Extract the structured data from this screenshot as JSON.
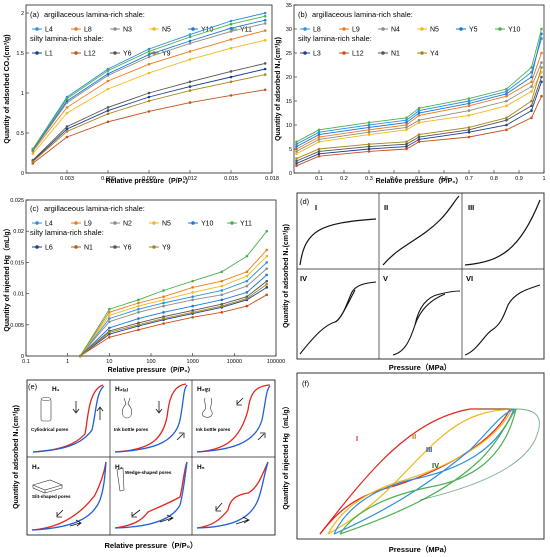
{
  "panel_labels": {
    "a": "(a)",
    "b": "(b)",
    "c": "(c)",
    "d": "(d)",
    "e": "(e)",
    "f": "(f)"
  },
  "legend_headers": {
    "argillaceous": "argillaceous lamina-rich shale:",
    "silty": "silty lamina-rich shale:"
  },
  "colors": {
    "blue": "#1f77d4",
    "orange": "#f07a1a",
    "gray": "#8c8c8c",
    "yellow": "#f2b81c",
    "skyblue": "#2c8fe0",
    "green": "#4caf50",
    "navy": "#1d3f8f",
    "darkorange": "#c8501a",
    "darkgray": "#555555",
    "olive": "#a8861a",
    "red": "#e8231c"
  },
  "chart_data": [
    {
      "id": "a",
      "type": "line",
      "xlabel": "Relative pressure（P/P₀）",
      "ylabel": "Quantity of adsorbed CO₂(cm³/g)",
      "xlim": [
        0,
        0.018
      ],
      "ylim": [
        0,
        2.1
      ],
      "xticks": [
        "0.003",
        "0.006",
        "0.009",
        "0.012",
        "0.015",
        "0.018"
      ],
      "yticks": [
        "0",
        "0.5",
        "1",
        "1.5",
        "2"
      ],
      "legend_argillaceous": [
        "L4",
        "L8",
        "N3",
        "N5",
        "Y10",
        "Y11"
      ],
      "legend_silty": [
        "L1",
        "L12",
        "Y6",
        "Y9"
      ],
      "x": [
        0.0005,
        0.003,
        0.006,
        0.009,
        0.012,
        0.015,
        0.0175
      ],
      "series": [
        {
          "name": "L4",
          "values": [
            0.3,
            0.95,
            1.3,
            1.55,
            1.73,
            1.9,
            2.0
          ]
        },
        {
          "name": "L8",
          "values": [
            0.27,
            0.82,
            1.15,
            1.36,
            1.52,
            1.67,
            1.78
          ]
        },
        {
          "name": "N3",
          "values": [
            0.28,
            0.88,
            1.22,
            1.45,
            1.62,
            1.77,
            1.87
          ]
        },
        {
          "name": "N5",
          "values": [
            0.24,
            0.75,
            1.05,
            1.25,
            1.42,
            1.56,
            1.66
          ]
        },
        {
          "name": "Y10",
          "values": [
            0.29,
            0.9,
            1.24,
            1.48,
            1.65,
            1.81,
            1.91
          ]
        },
        {
          "name": "Y11",
          "values": [
            0.3,
            0.93,
            1.28,
            1.52,
            1.7,
            1.86,
            1.96
          ]
        },
        {
          "name": "L1",
          "values": [
            0.15,
            0.55,
            0.78,
            0.95,
            1.08,
            1.2,
            1.3
          ]
        },
        {
          "name": "L12",
          "values": [
            0.12,
            0.45,
            0.64,
            0.77,
            0.88,
            0.97,
            1.04
          ]
        },
        {
          "name": "Y6",
          "values": [
            0.16,
            0.58,
            0.82,
            1.0,
            1.14,
            1.27,
            1.37
          ]
        },
        {
          "name": "Y9",
          "values": [
            0.14,
            0.52,
            0.74,
            0.9,
            1.03,
            1.14,
            1.23
          ]
        }
      ]
    },
    {
      "id": "b",
      "type": "line",
      "xlabel": "Relative pressure（P/P₀）",
      "ylabel": "Quantity of adsorbed N₂(cm³/g)",
      "xlim": [
        0,
        1
      ],
      "ylim": [
        0,
        35
      ],
      "xticks": [
        "0.1",
        "0.2",
        "0.3",
        "0.4",
        "0.5",
        "0.6",
        "0.7",
        "0.8",
        "0.9",
        "1"
      ],
      "yticks": [
        "0",
        "5",
        "10",
        "15",
        "20",
        "25",
        "30",
        "35"
      ],
      "legend_argillaceous": [
        "L8",
        "L9",
        "N4",
        "N5",
        "Y5",
        "Y10"
      ],
      "legend_silty": [
        "L3",
        "L12",
        "N1",
        "Y4"
      ],
      "x": [
        0.01,
        0.1,
        0.3,
        0.45,
        0.5,
        0.7,
        0.85,
        0.95,
        0.99
      ],
      "series": [
        {
          "name": "L8",
          "values": [
            6,
            8.5,
            10,
            11,
            13,
            15,
            17,
            21,
            28
          ]
        },
        {
          "name": "L9",
          "values": [
            5,
            7.5,
            9,
            10,
            12,
            14,
            16,
            19,
            25
          ]
        },
        {
          "name": "N4",
          "values": [
            4.5,
            7,
            8.5,
            9.5,
            11,
            13,
            15,
            18,
            23
          ]
        },
        {
          "name": "N5",
          "values": [
            4,
            6.5,
            8,
            9,
            10.5,
            12,
            14,
            17,
            21
          ]
        },
        {
          "name": "Y5",
          "values": [
            5.5,
            8,
            9.5,
            10.5,
            12.5,
            14.5,
            16.5,
            20,
            29
          ]
        },
        {
          "name": "Y10",
          "values": [
            6.5,
            9,
            10.5,
            11.5,
            13.5,
            15.5,
            17.5,
            22,
            30
          ]
        },
        {
          "name": "L3",
          "values": [
            2,
            4,
            5,
            5.5,
            7,
            8.5,
            10,
            13,
            19
          ]
        },
        {
          "name": "L12",
          "values": [
            1.5,
            3.5,
            4.5,
            5,
            6.5,
            7.5,
            9,
            11.5,
            16
          ]
        },
        {
          "name": "N1",
          "values": [
            2.5,
            4.5,
            5.5,
            6,
            7.5,
            9,
            11,
            14,
            20
          ]
        },
        {
          "name": "Y4",
          "values": [
            3,
            5,
            6,
            6.5,
            8,
            9.5,
            11.5,
            15,
            22
          ]
        }
      ]
    },
    {
      "id": "c",
      "type": "line",
      "xlabel": "Relative pressure（P/P₀）",
      "ylabel": "Quantity of injected Hg（mL/g）",
      "xscale": "log",
      "xlim": [
        0.1,
        100000
      ],
      "ylim": [
        0,
        0.025
      ],
      "xticks": [
        "0.1",
        "1",
        "10",
        "100",
        "1000",
        "10000",
        "100000"
      ],
      "yticks": [
        "0",
        "0.005",
        "0.01",
        "0.015",
        "0.02",
        "0.025"
      ],
      "legend_argillaceous": [
        "L4",
        "L9",
        "N2",
        "N5",
        "Y10",
        "Y11"
      ],
      "legend_silty": [
        "L6",
        "N1",
        "Y6",
        "Y9"
      ],
      "x": [
        2,
        10,
        50,
        200,
        1000,
        5000,
        20000,
        60000
      ],
      "series": [
        {
          "name": "L4",
          "values": [
            0,
            0.006,
            0.0075,
            0.0085,
            0.0095,
            0.0105,
            0.012,
            0.015
          ]
        },
        {
          "name": "L9",
          "values": [
            0,
            0.007,
            0.0085,
            0.0095,
            0.011,
            0.012,
            0.0135,
            0.017
          ]
        },
        {
          "name": "N2",
          "values": [
            0,
            0.0055,
            0.007,
            0.008,
            0.009,
            0.0098,
            0.0112,
            0.014
          ]
        },
        {
          "name": "N5",
          "values": [
            0,
            0.0065,
            0.008,
            0.009,
            0.0102,
            0.0112,
            0.0128,
            0.016
          ]
        },
        {
          "name": "Y10",
          "values": [
            0,
            0.0045,
            0.006,
            0.007,
            0.008,
            0.009,
            0.0102,
            0.013
          ]
        },
        {
          "name": "Y11",
          "values": [
            0,
            0.0075,
            0.009,
            0.0105,
            0.012,
            0.0135,
            0.016,
            0.02
          ]
        },
        {
          "name": "L6",
          "values": [
            0,
            0.0035,
            0.0048,
            0.0058,
            0.0068,
            0.0078,
            0.009,
            0.011
          ]
        },
        {
          "name": "N1",
          "values": [
            0,
            0.003,
            0.0042,
            0.0052,
            0.0062,
            0.007,
            0.008,
            0.0098
          ]
        },
        {
          "name": "Y6",
          "values": [
            0,
            0.004,
            0.0053,
            0.0063,
            0.0073,
            0.0083,
            0.0095,
            0.012
          ]
        },
        {
          "name": "Y9",
          "values": [
            0,
            0.0038,
            0.005,
            0.006,
            0.007,
            0.008,
            0.0092,
            0.0115
          ]
        }
      ]
    },
    {
      "id": "d",
      "type": "line",
      "xlabel": "Pressure（MPa）",
      "ylabel": "Quantity of adsorbed N₂(cm³/g)",
      "panels": [
        "I",
        "II",
        "III",
        "IV",
        "V",
        "VI"
      ]
    },
    {
      "id": "e",
      "type": "line",
      "xlabel": "Relative pressure（P/P₀）",
      "ylabel": "Quantity of adsorbed N₂(cm³/g)",
      "panels": [
        {
          "code": "H₁",
          "caption": "Cyliodrical pores"
        },
        {
          "code": "H₂₍ₐ₎",
          "caption": "Ink bottle pores"
        },
        {
          "code": "H₂₍ᵦ₎",
          "caption": "Ink bottle pores"
        },
        {
          "code": "H₃",
          "caption": "Slit-shaped pores"
        },
        {
          "code": "H₄",
          "caption": "Wedge-shaped pores"
        },
        {
          "code": "H₅",
          "caption": ""
        }
      ]
    },
    {
      "id": "f",
      "type": "line",
      "xlabel": "Pressure（MPa）",
      "ylabel": "Quantity of injected Hg（mL/g）",
      "series": [
        {
          "name": "I",
          "color": "red"
        },
        {
          "name": "II",
          "color": "yellow"
        },
        {
          "name": "III",
          "color": "skyblue"
        },
        {
          "name": "IV",
          "color": "green"
        }
      ]
    }
  ]
}
